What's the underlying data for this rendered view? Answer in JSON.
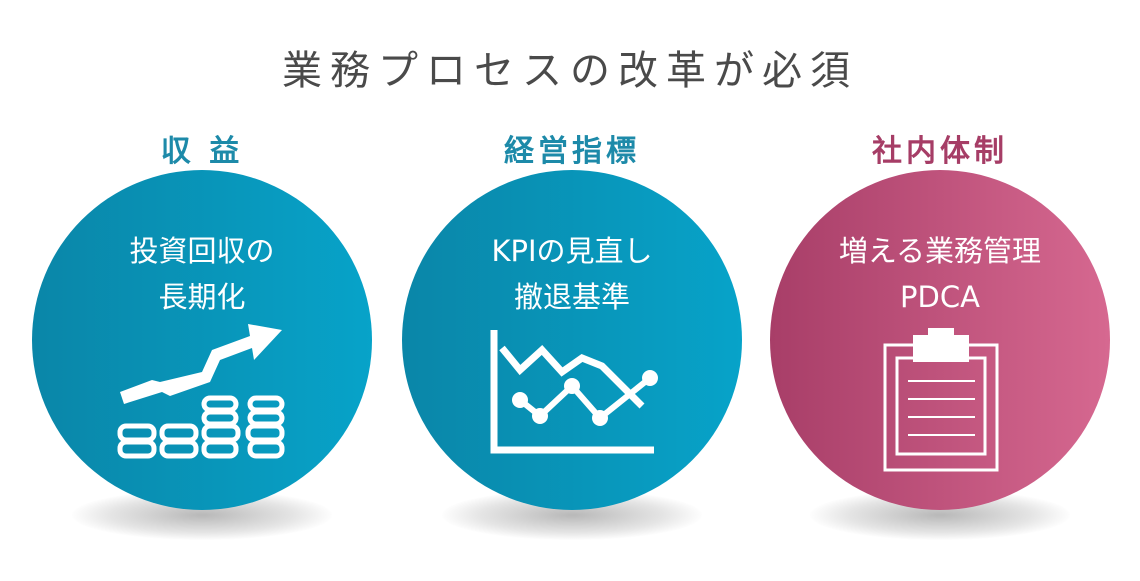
{
  "title": "業務プロセスの改革が必須",
  "colors": {
    "teal": "#0a95b8",
    "teal_heading": "#1d8aa9",
    "pink": "#c0507c",
    "pink_heading": "#a63d66",
    "title": "#4a4a4a"
  },
  "columns": [
    {
      "heading": "収 益",
      "line1": "投資回収の",
      "line2": "長期化",
      "icon": "rising-arrow-coins-icon"
    },
    {
      "heading": "経営指標",
      "line1": "KPIの見直し",
      "line2": "撤退基準",
      "icon": "line-chart-icon"
    },
    {
      "heading": "社内体制",
      "line1": "増える業務管理",
      "line2": "PDCA",
      "icon": "clipboard-icon"
    }
  ]
}
